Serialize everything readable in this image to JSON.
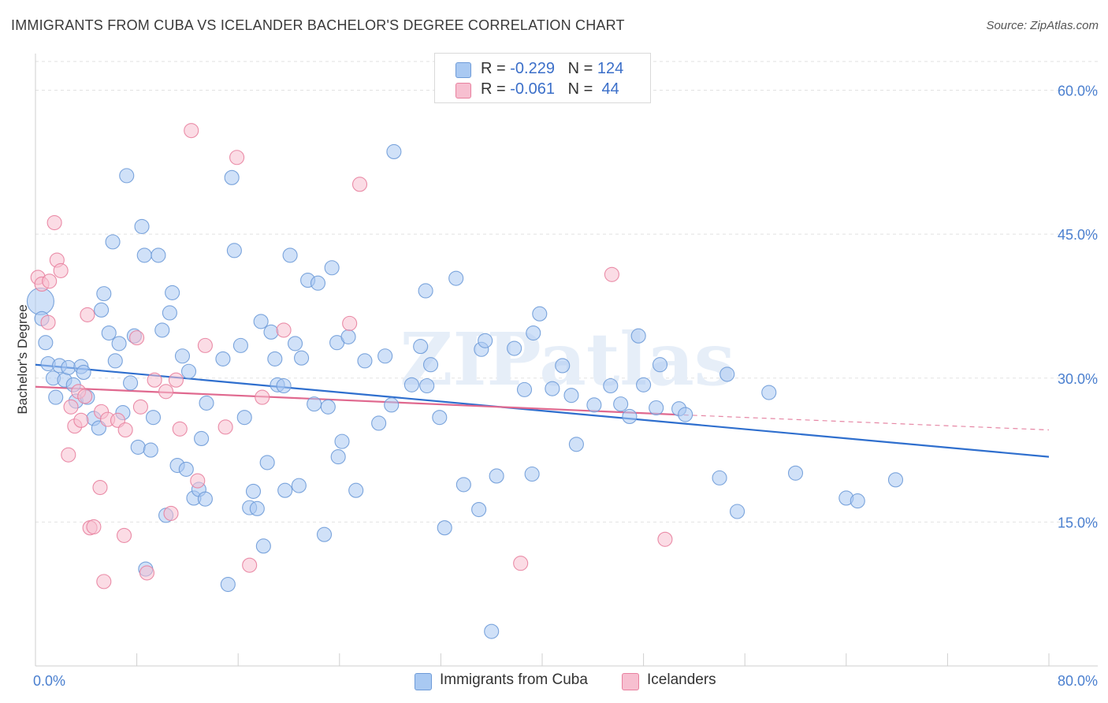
{
  "title": "IMMIGRANTS FROM CUBA VS ICELANDER BACHELOR'S DEGREE CORRELATION CHART",
  "source": "Source: ZipAtlas.com",
  "watermark": "ZIPatlas",
  "legend_top": [
    {
      "r_label": "R = ",
      "r_value": "-0.229",
      "n_label": "N = ",
      "n_value": "124"
    },
    {
      "r_label": "R = ",
      "r_value": "-0.061",
      "n_label": "N = ",
      "n_value": " 44"
    }
  ],
  "legend_bottom": [
    "Immigrants from Cuba",
    "Icelanders"
  ],
  "colors": {
    "blue_fill": "#a9c9f2",
    "blue_stroke": "#6e9bd8",
    "blue_line": "#2f6fce",
    "pink_fill": "#f7bfd0",
    "pink_stroke": "#e8819f",
    "pink_line": "#e0698f",
    "tick_text": "#4a7fcf",
    "grid": "#e2e2e2"
  },
  "chart_data": {
    "type": "scatter",
    "title": "IMMIGRANTS FROM CUBA VS ICELANDER BACHELOR'S DEGREE CORRELATION CHART",
    "xlabel": "",
    "ylabel": "Bachelor's Degree",
    "xlim": [
      0,
      80
    ],
    "ylim": [
      0,
      63
    ],
    "x_tick_labels": [
      {
        "value": 0,
        "label": "0.0%"
      },
      {
        "value": 80,
        "label": "80.0%"
      }
    ],
    "y_tick_labels": [
      {
        "value": 15,
        "label": "15.0%"
      },
      {
        "value": 30,
        "label": "30.0%"
      },
      {
        "value": 45,
        "label": "45.0%"
      },
      {
        "value": 60,
        "label": "60.0%"
      }
    ],
    "x_minor_ticks": [
      0,
      8,
      16,
      24,
      32,
      40,
      48,
      56,
      64,
      72,
      80
    ],
    "grid": true,
    "legend_position": "top-center",
    "series": [
      {
        "name": "Immigrants from Cuba",
        "color": "#a9c9f2",
        "trend": {
          "x": [
            0,
            80
          ],
          "y": [
            31.4,
            21.8
          ],
          "style": "solid"
        },
        "points": [
          [
            0.4,
            38.0
          ],
          [
            0.5,
            36.2
          ],
          [
            0.8,
            33.7
          ],
          [
            1.0,
            31.5
          ],
          [
            1.4,
            30.0
          ],
          [
            1.6,
            28.0
          ],
          [
            1.9,
            31.3
          ],
          [
            2.3,
            29.8
          ],
          [
            2.6,
            31.1
          ],
          [
            3.0,
            29.3
          ],
          [
            3.2,
            27.6
          ],
          [
            3.6,
            31.2
          ],
          [
            3.8,
            30.6
          ],
          [
            4.1,
            28.0
          ],
          [
            4.6,
            25.8
          ],
          [
            5.0,
            24.8
          ],
          [
            5.2,
            37.1
          ],
          [
            5.4,
            38.8
          ],
          [
            5.8,
            34.7
          ],
          [
            6.1,
            44.2
          ],
          [
            6.3,
            31.8
          ],
          [
            6.6,
            33.6
          ],
          [
            6.9,
            26.4
          ],
          [
            7.2,
            51.1
          ],
          [
            7.5,
            29.5
          ],
          [
            7.8,
            34.4
          ],
          [
            8.1,
            22.8
          ],
          [
            8.4,
            45.8
          ],
          [
            8.6,
            42.8
          ],
          [
            8.7,
            10.1
          ],
          [
            9.1,
            22.5
          ],
          [
            9.3,
            25.9
          ],
          [
            9.7,
            42.8
          ],
          [
            10.0,
            35.0
          ],
          [
            10.3,
            15.7
          ],
          [
            10.6,
            36.8
          ],
          [
            10.8,
            38.9
          ],
          [
            11.2,
            20.9
          ],
          [
            11.6,
            32.3
          ],
          [
            11.9,
            20.5
          ],
          [
            12.1,
            30.7
          ],
          [
            12.5,
            17.5
          ],
          [
            12.9,
            18.4
          ],
          [
            13.1,
            23.7
          ],
          [
            13.4,
            17.4
          ],
          [
            13.5,
            27.4
          ],
          [
            14.8,
            32.0
          ],
          [
            15.2,
            8.5
          ],
          [
            15.5,
            50.9
          ],
          [
            15.7,
            43.3
          ],
          [
            16.2,
            33.4
          ],
          [
            16.5,
            25.9
          ],
          [
            16.9,
            16.5
          ],
          [
            17.2,
            18.2
          ],
          [
            17.5,
            16.4
          ],
          [
            17.8,
            35.9
          ],
          [
            18.0,
            12.5
          ],
          [
            18.3,
            21.2
          ],
          [
            18.6,
            34.8
          ],
          [
            18.9,
            32.0
          ],
          [
            19.1,
            29.3
          ],
          [
            19.6,
            29.2
          ],
          [
            19.7,
            18.3
          ],
          [
            20.1,
            42.8
          ],
          [
            20.5,
            33.6
          ],
          [
            20.8,
            18.8
          ],
          [
            21.0,
            32.1
          ],
          [
            21.5,
            40.2
          ],
          [
            22.0,
            27.3
          ],
          [
            22.3,
            39.9
          ],
          [
            22.8,
            13.7
          ],
          [
            23.1,
            27.0
          ],
          [
            23.4,
            41.5
          ],
          [
            23.8,
            33.7
          ],
          [
            23.9,
            21.8
          ],
          [
            24.2,
            23.4
          ],
          [
            24.7,
            34.3
          ],
          [
            25.3,
            18.3
          ],
          [
            26.0,
            31.8
          ],
          [
            27.1,
            25.3
          ],
          [
            27.6,
            32.3
          ],
          [
            28.1,
            27.2
          ],
          [
            28.3,
            53.6
          ],
          [
            29.7,
            29.3
          ],
          [
            30.4,
            33.3
          ],
          [
            30.8,
            39.1
          ],
          [
            30.9,
            29.2
          ],
          [
            31.2,
            31.4
          ],
          [
            31.9,
            25.9
          ],
          [
            32.3,
            14.4
          ],
          [
            33.2,
            40.4
          ],
          [
            33.8,
            18.9
          ],
          [
            35.0,
            16.3
          ],
          [
            35.2,
            33.0
          ],
          [
            35.5,
            33.9
          ],
          [
            36.0,
            3.6
          ],
          [
            36.4,
            19.8
          ],
          [
            37.8,
            33.1
          ],
          [
            38.6,
            28.8
          ],
          [
            39.2,
            20.0
          ],
          [
            39.3,
            34.7
          ],
          [
            39.8,
            36.7
          ],
          [
            40.8,
            28.9
          ],
          [
            41.6,
            31.3
          ],
          [
            42.3,
            28.2
          ],
          [
            42.7,
            23.1
          ],
          [
            44.1,
            27.2
          ],
          [
            45.4,
            29.2
          ],
          [
            46.2,
            27.3
          ],
          [
            46.9,
            26.0
          ],
          [
            47.6,
            34.4
          ],
          [
            48.0,
            29.3
          ],
          [
            49.0,
            26.9
          ],
          [
            49.3,
            31.4
          ],
          [
            50.8,
            26.8
          ],
          [
            51.3,
            26.2
          ],
          [
            54.0,
            19.6
          ],
          [
            54.6,
            30.4
          ],
          [
            55.4,
            16.1
          ],
          [
            57.9,
            28.5
          ],
          [
            60.0,
            20.1
          ],
          [
            64.0,
            17.5
          ],
          [
            64.9,
            17.2
          ],
          [
            67.9,
            19.4
          ]
        ]
      },
      {
        "name": "Icelanders",
        "color": "#f7bfd0",
        "trend": {
          "x": [
            0,
            50.5
          ],
          "y": [
            29.1,
            26.2
          ],
          "style": "solid",
          "dashed_extension": {
            "x": [
              50.5,
              80
            ],
            "y": [
              26.2,
              24.6
            ]
          }
        },
        "points": [
          [
            0.2,
            40.5
          ],
          [
            0.5,
            39.8
          ],
          [
            1.0,
            35.8
          ],
          [
            1.1,
            40.1
          ],
          [
            1.5,
            46.2
          ],
          [
            1.7,
            42.3
          ],
          [
            2.0,
            41.2
          ],
          [
            2.6,
            22.0
          ],
          [
            2.8,
            27.0
          ],
          [
            3.1,
            25.0
          ],
          [
            3.4,
            28.6
          ],
          [
            3.6,
            25.6
          ],
          [
            3.9,
            28.1
          ],
          [
            4.1,
            36.6
          ],
          [
            4.3,
            14.4
          ],
          [
            4.6,
            14.5
          ],
          [
            5.1,
            18.6
          ],
          [
            5.2,
            26.5
          ],
          [
            5.4,
            8.8
          ],
          [
            5.7,
            25.7
          ],
          [
            6.5,
            25.6
          ],
          [
            7.0,
            13.6
          ],
          [
            7.1,
            24.6
          ],
          [
            8.0,
            34.2
          ],
          [
            8.3,
            27.0
          ],
          [
            8.8,
            9.7
          ],
          [
            9.4,
            29.8
          ],
          [
            10.3,
            28.6
          ],
          [
            10.7,
            15.9
          ],
          [
            11.1,
            29.8
          ],
          [
            11.4,
            24.7
          ],
          [
            12.3,
            55.8
          ],
          [
            12.8,
            19.3
          ],
          [
            13.4,
            33.4
          ],
          [
            15.0,
            24.9
          ],
          [
            15.9,
            53.0
          ],
          [
            16.9,
            10.5
          ],
          [
            17.9,
            28.0
          ],
          [
            19.6,
            35.0
          ],
          [
            24.8,
            35.7
          ],
          [
            25.6,
            50.2
          ],
          [
            38.3,
            10.7
          ],
          [
            45.5,
            40.8
          ],
          [
            49.7,
            13.2
          ]
        ]
      }
    ]
  }
}
